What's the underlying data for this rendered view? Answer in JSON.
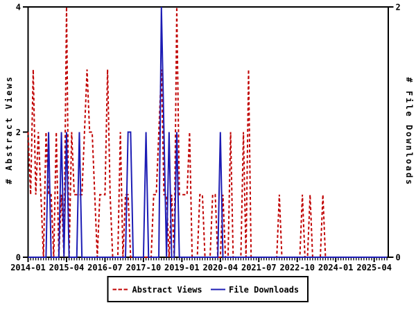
{
  "chart_data": {
    "type": "line",
    "title": "",
    "x_axis": {
      "unit": "month",
      "start_month": "2014-01",
      "end_month": "2025-09",
      "tick_labels": [
        "2014-01",
        "2015-04",
        "2016-07",
        "2017-10",
        "2019-01",
        "2020-04",
        "2021-07",
        "2022-10",
        "2024-01",
        "2025-04"
      ],
      "tick_interval_months": 15,
      "minor_tick_interval_months": 1
    },
    "y_left": {
      "label": "# Abstract Views",
      "ticks": [
        "0",
        "2",
        "4"
      ],
      "range": [
        0,
        4
      ]
    },
    "y_right": {
      "label": "# File Downloads",
      "ticks": [
        "0",
        "2"
      ],
      "range": [
        0,
        2
      ]
    },
    "grid": "off",
    "legend_position": "bottom-center",
    "series": [
      {
        "name": "Abstract Views",
        "axis": "left",
        "color": "#c00000",
        "style": "dashed",
        "values": [
          2,
          1,
          3,
          1,
          2,
          1,
          0,
          2,
          1,
          1,
          0,
          2,
          0,
          1,
          0,
          4,
          0,
          2,
          1,
          1,
          1,
          1,
          2,
          3,
          2,
          2,
          1,
          0,
          1,
          1,
          1,
          3,
          1,
          0,
          0,
          0,
          2,
          0,
          1,
          1,
          0,
          0,
          0,
          0,
          0,
          0,
          0,
          0,
          0,
          1,
          1,
          2,
          3,
          1,
          1,
          0,
          1,
          0,
          4,
          1,
          1,
          1,
          1,
          2,
          0,
          0,
          0,
          1,
          1,
          0,
          0,
          0,
          1,
          1,
          0,
          0,
          1,
          0,
          0,
          2,
          0,
          0,
          0,
          0,
          2,
          0,
          3,
          0,
          0,
          0,
          0,
          0,
          0,
          0,
          0,
          0,
          0,
          0,
          1,
          0,
          0,
          0,
          0,
          0,
          0,
          0,
          0,
          1,
          0,
          0,
          1,
          0,
          0,
          0,
          0,
          1,
          0,
          0,
          0,
          0,
          0,
          0,
          0,
          0,
          0,
          0,
          0,
          0,
          0,
          0,
          0,
          0,
          0,
          0,
          0,
          0,
          0,
          0,
          0,
          0,
          0
        ]
      },
      {
        "name": "File Downloads",
        "axis": "right",
        "color": "#1c1cb4",
        "style": "solid",
        "values": [
          0,
          0,
          0,
          0,
          0,
          0,
          0,
          0,
          1,
          0,
          0,
          0,
          0,
          1,
          0,
          1,
          0,
          0,
          0,
          0,
          1,
          0,
          0,
          0,
          0,
          0,
          0,
          0,
          0,
          0,
          0,
          0,
          0,
          0,
          0,
          0,
          0,
          0,
          0,
          1,
          1,
          0,
          0,
          0,
          0,
          0,
          1,
          0,
          0,
          0,
          0,
          0,
          2,
          1,
          0,
          1,
          0,
          0,
          1,
          0,
          0,
          0,
          0,
          0,
          0,
          0,
          0,
          0,
          0,
          0,
          0,
          0,
          0,
          0,
          0,
          1,
          0,
          0,
          0,
          0,
          0,
          0,
          0,
          0,
          0,
          0,
          0,
          0,
          0,
          0,
          0,
          0,
          0,
          0,
          0,
          0,
          0,
          0,
          0,
          0,
          0,
          0,
          0,
          0,
          0,
          0,
          0,
          0,
          0,
          0,
          0,
          0,
          0,
          0,
          0,
          0,
          0,
          0,
          0,
          0,
          0,
          0,
          0,
          0,
          0,
          0,
          0,
          0,
          0,
          0,
          0,
          0,
          0,
          0,
          0,
          0,
          0,
          0,
          0,
          0,
          0
        ]
      }
    ]
  }
}
